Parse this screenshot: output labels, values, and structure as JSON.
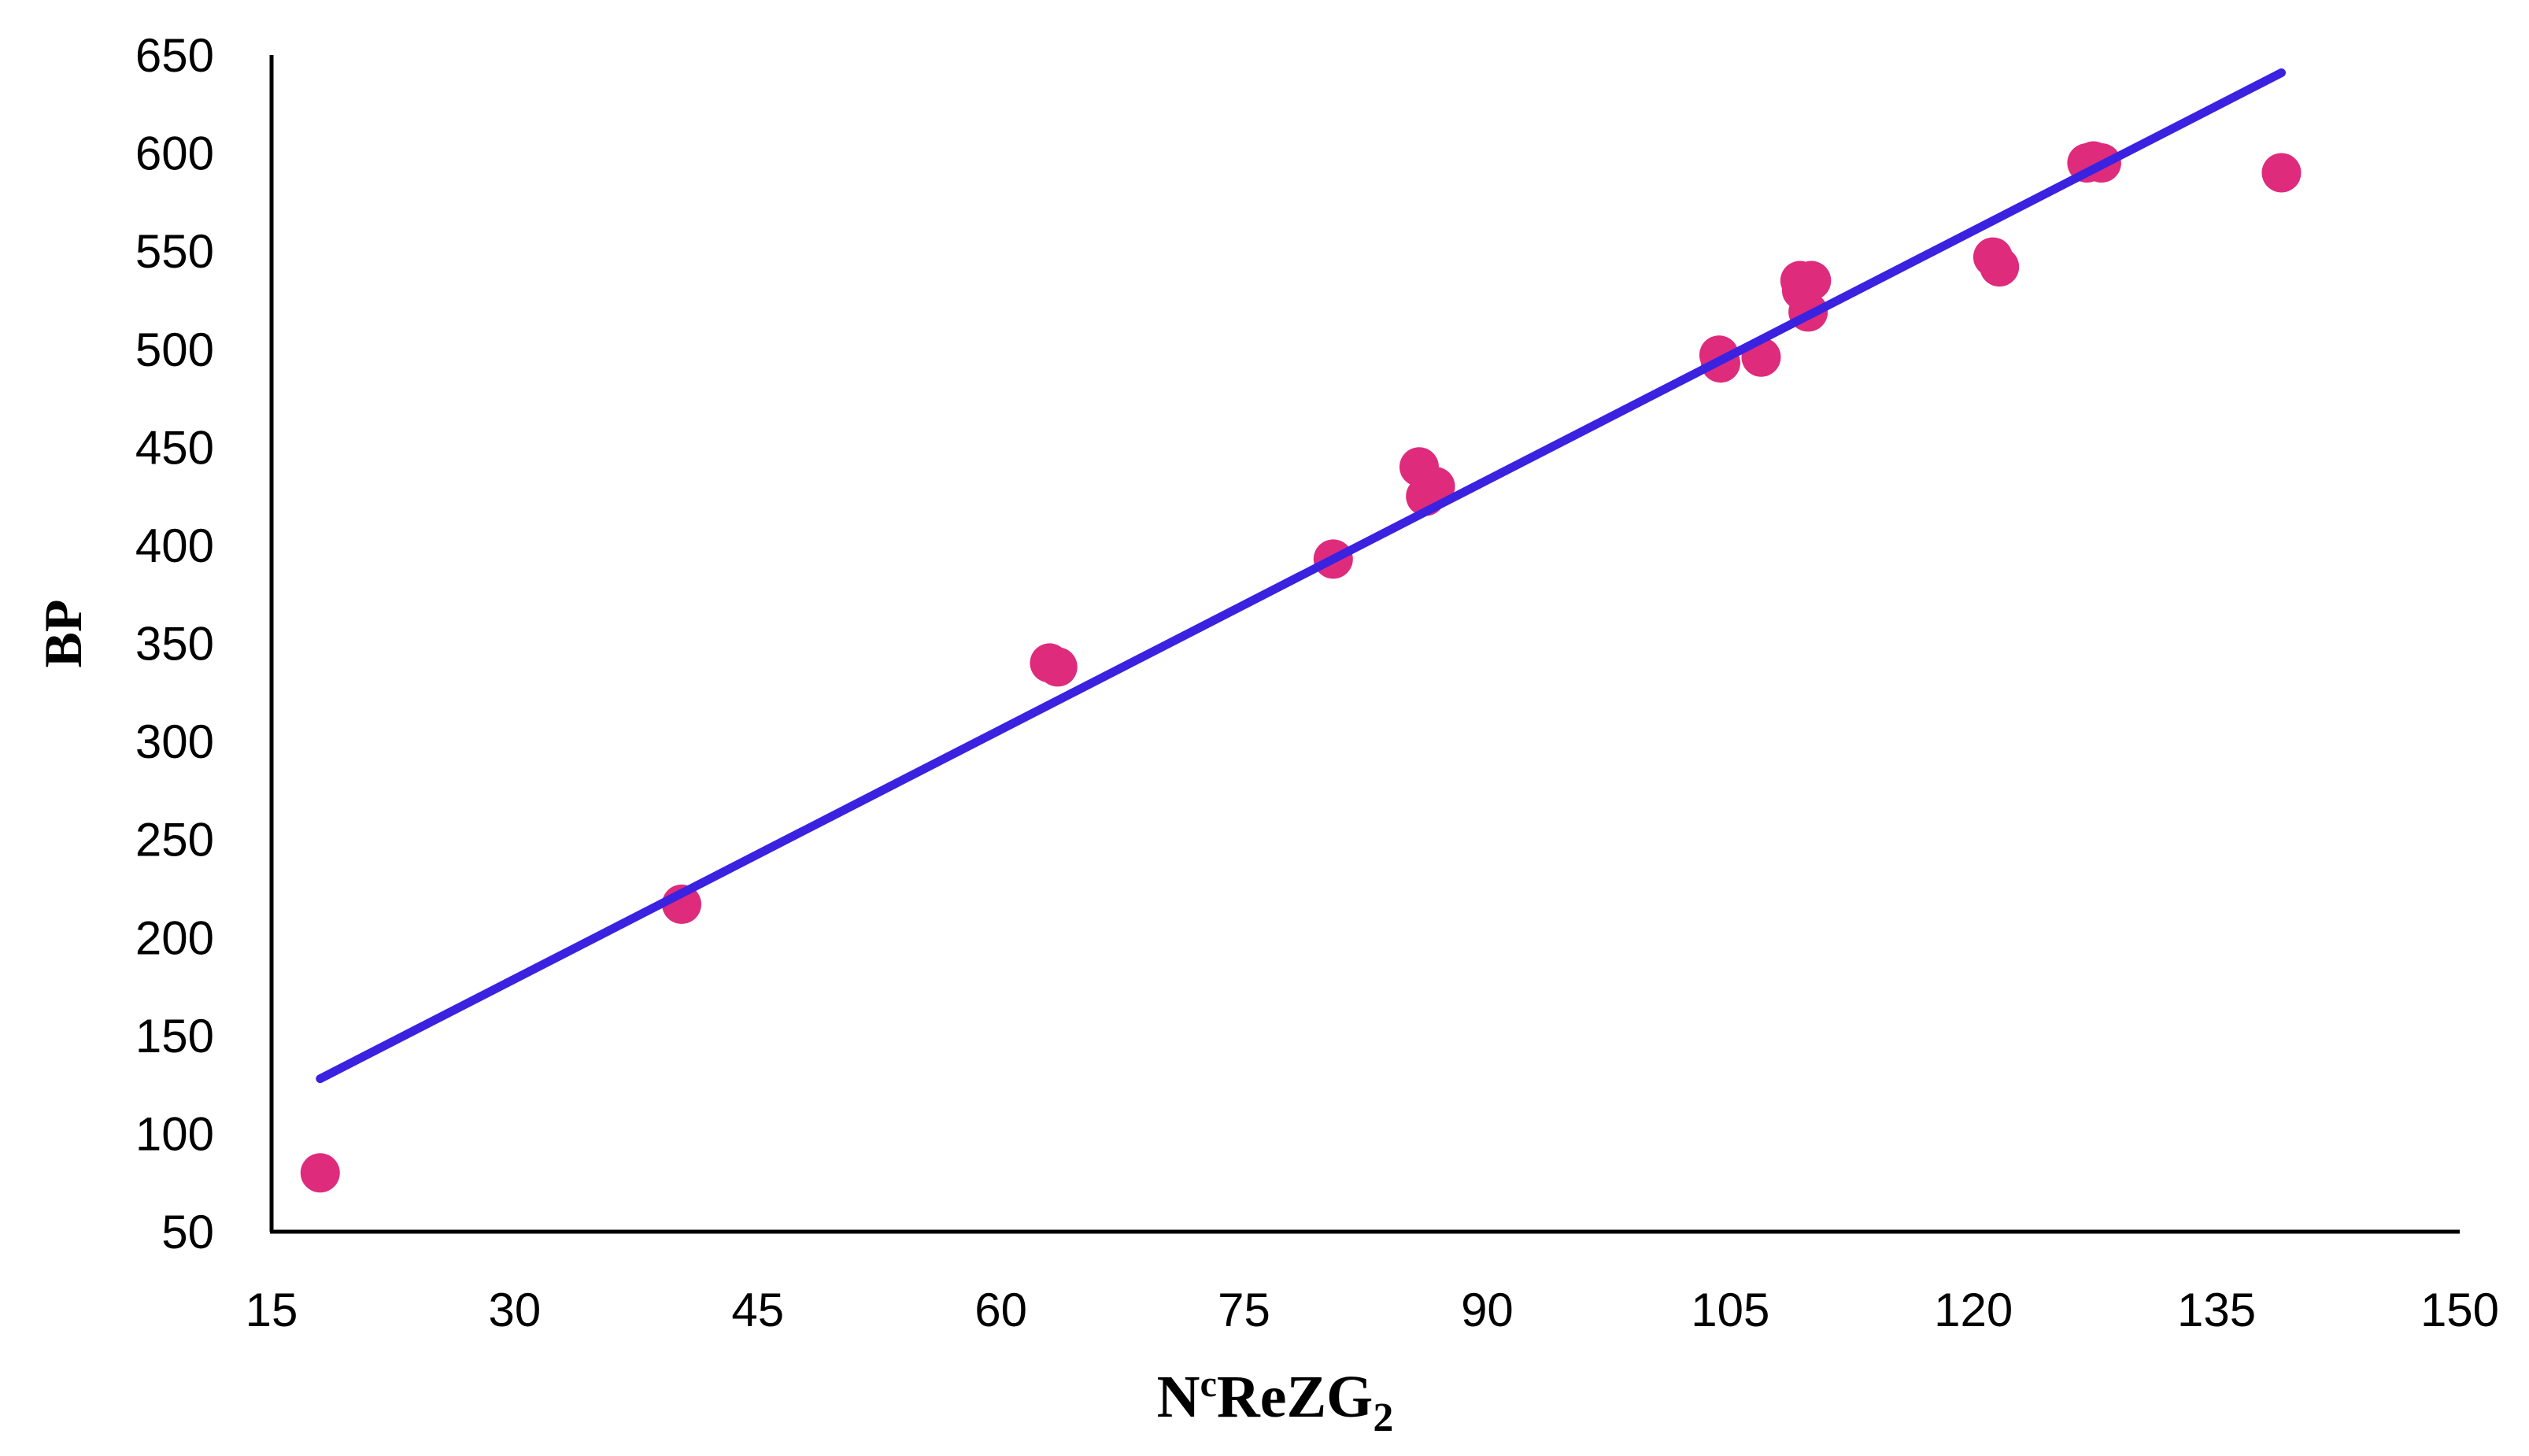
{
  "chart_data": {
    "type": "scatter",
    "title": "",
    "xlabel": {
      "base": "N",
      "superscript": "c",
      "main": "ReZG",
      "subscript": "2"
    },
    "ylabel": "BP",
    "xlim": [
      15,
      150
    ],
    "ylim": [
      50,
      650
    ],
    "x_ticks": [
      15,
      30,
      45,
      60,
      75,
      90,
      105,
      120,
      135,
      150
    ],
    "y_ticks": [
      50,
      100,
      150,
      200,
      250,
      300,
      350,
      400,
      450,
      500,
      550,
      600,
      650
    ],
    "grid": false,
    "legend": "none",
    "marker_color": "#de2b7c",
    "trendline_color": "#3a22e0",
    "points": [
      {
        "x": 18.0,
        "y": 80
      },
      {
        "x": 40.3,
        "y": 217
      },
      {
        "x": 63.0,
        "y": 340
      },
      {
        "x": 63.5,
        "y": 338
      },
      {
        "x": 80.5,
        "y": 393
      },
      {
        "x": 85.8,
        "y": 440
      },
      {
        "x": 86.2,
        "y": 425
      },
      {
        "x": 86.8,
        "y": 430
      },
      {
        "x": 104.3,
        "y": 497
      },
      {
        "x": 104.4,
        "y": 493
      },
      {
        "x": 106.9,
        "y": 496
      },
      {
        "x": 109.3,
        "y": 535
      },
      {
        "x": 109.4,
        "y": 530
      },
      {
        "x": 110.0,
        "y": 535
      },
      {
        "x": 109.8,
        "y": 519
      },
      {
        "x": 121.2,
        "y": 547
      },
      {
        "x": 121.6,
        "y": 542
      },
      {
        "x": 127.0,
        "y": 595
      },
      {
        "x": 127.4,
        "y": 596
      },
      {
        "x": 127.9,
        "y": 595
      },
      {
        "x": 139.0,
        "y": 590
      }
    ],
    "trendline": {
      "x": [
        18.0,
        139.0
      ],
      "y": [
        128,
        641
      ]
    }
  }
}
